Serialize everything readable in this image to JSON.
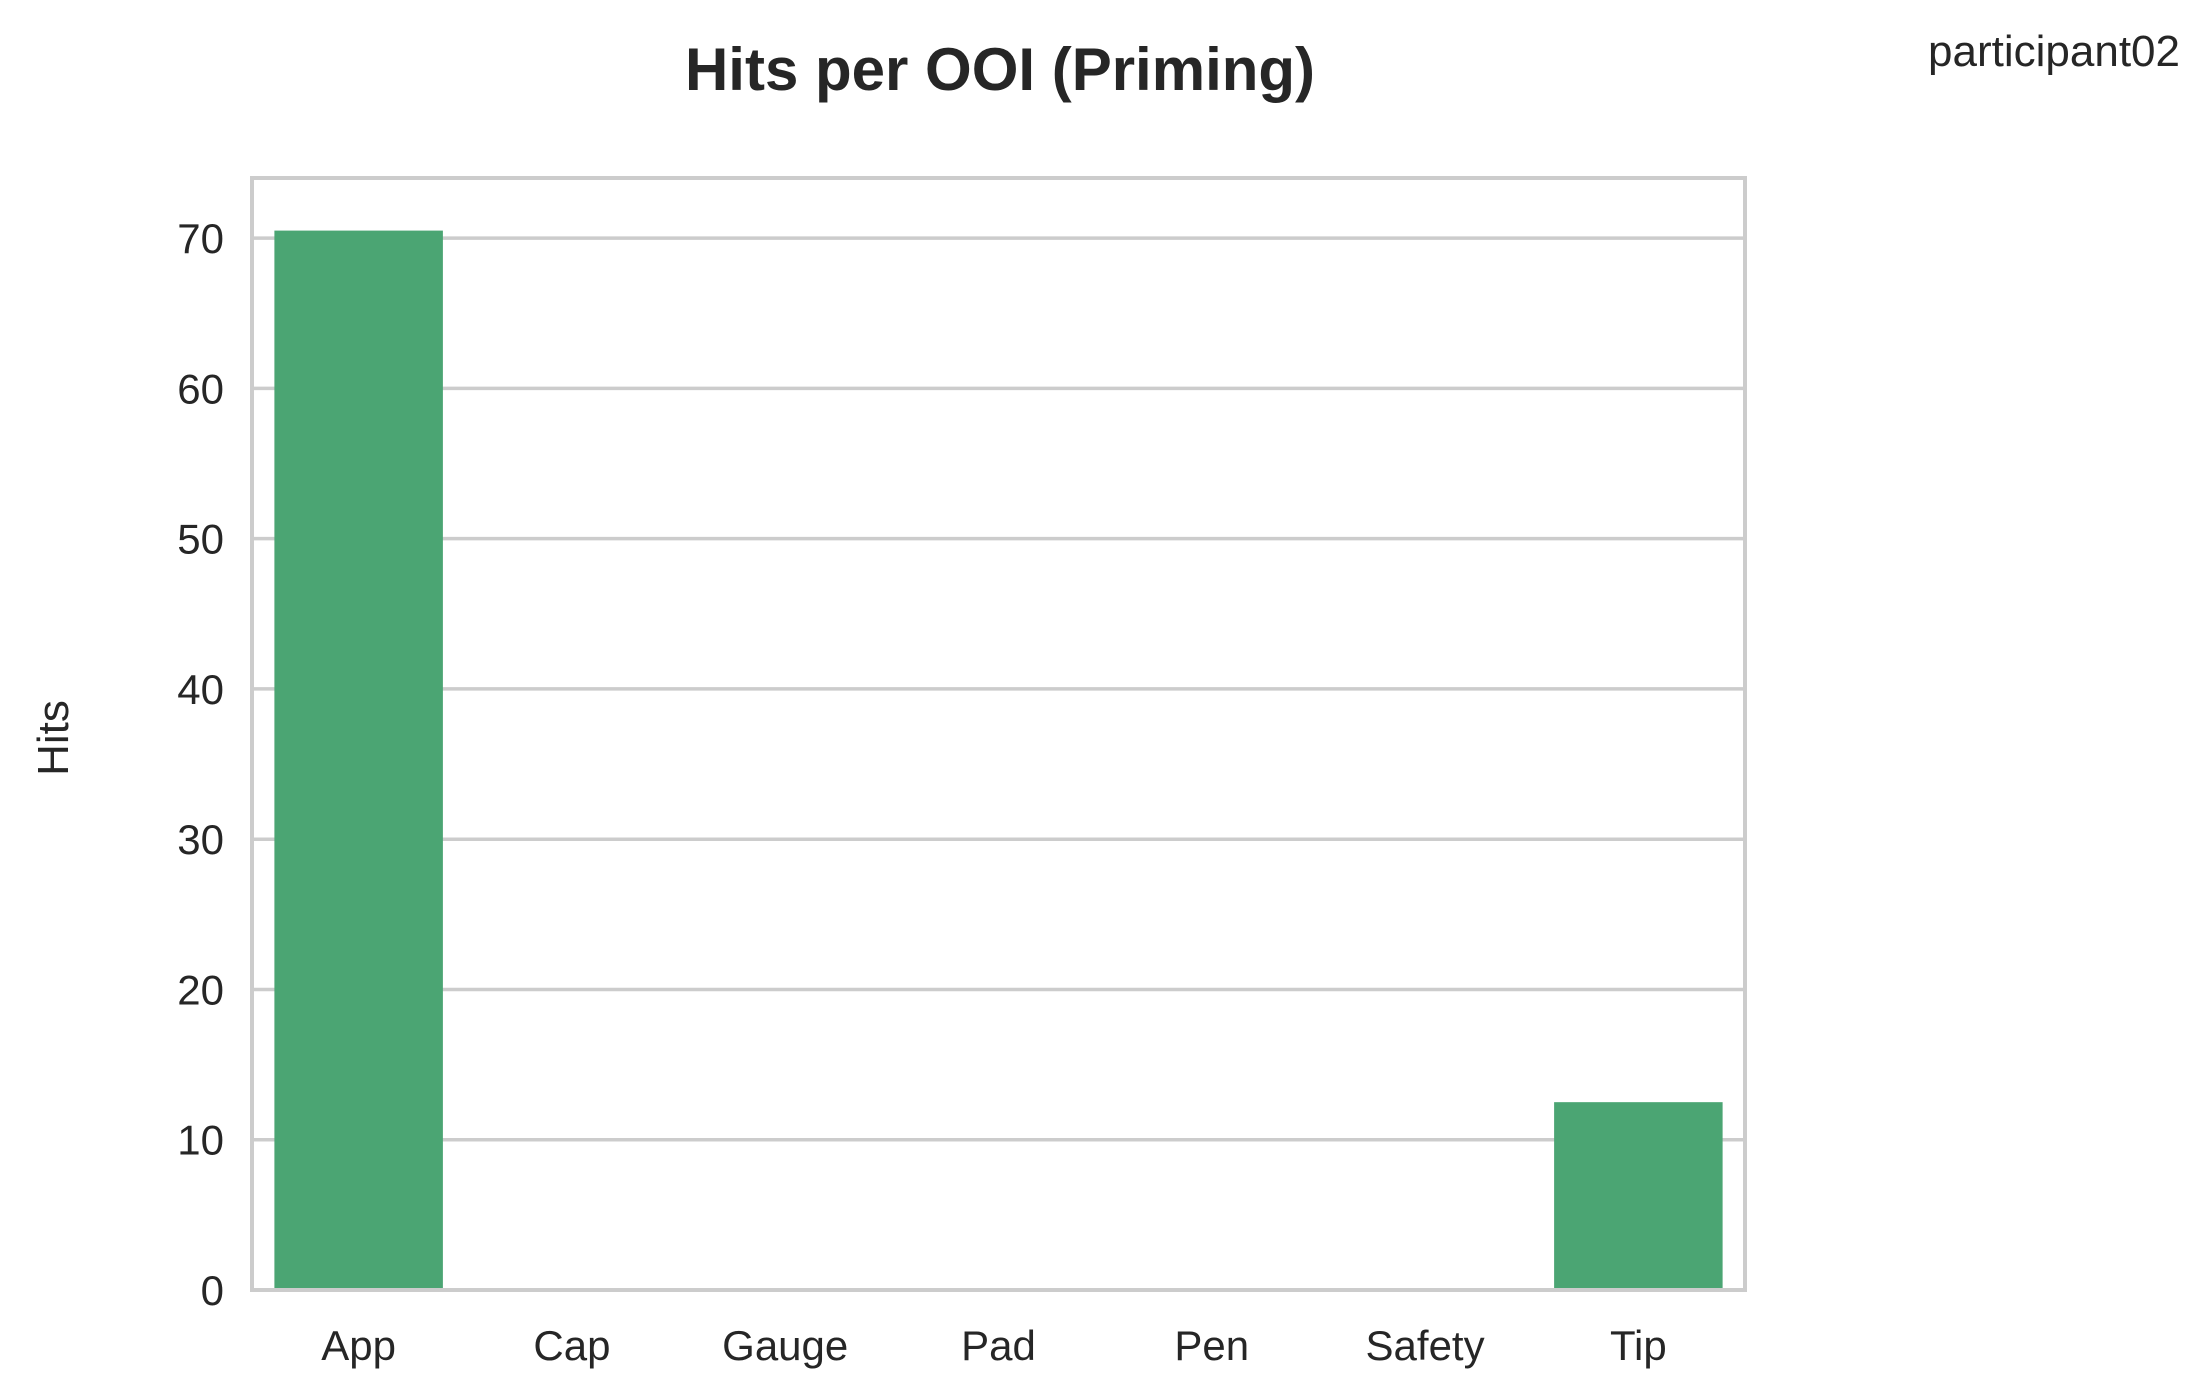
{
  "corner_label": "participant02",
  "colors": {
    "bar": "#4ba573",
    "grid": "#cccccc",
    "frame": "#cccccc",
    "text": "#262626",
    "background": "#ffffff"
  },
  "chart_data": {
    "type": "bar",
    "title": "Hits per OOI (Priming)",
    "xlabel": "",
    "ylabel": "Hits",
    "categories": [
      "App",
      "Cap",
      "Gauge",
      "Pad",
      "Pen",
      "Safety",
      "Tip"
    ],
    "values": [
      70.5,
      0,
      0,
      0,
      0,
      0,
      12.5
    ],
    "ylim": [
      0,
      74
    ],
    "yticks": [
      0,
      10,
      20,
      30,
      40,
      50,
      60,
      70
    ],
    "grid": "y",
    "legend": "none"
  }
}
